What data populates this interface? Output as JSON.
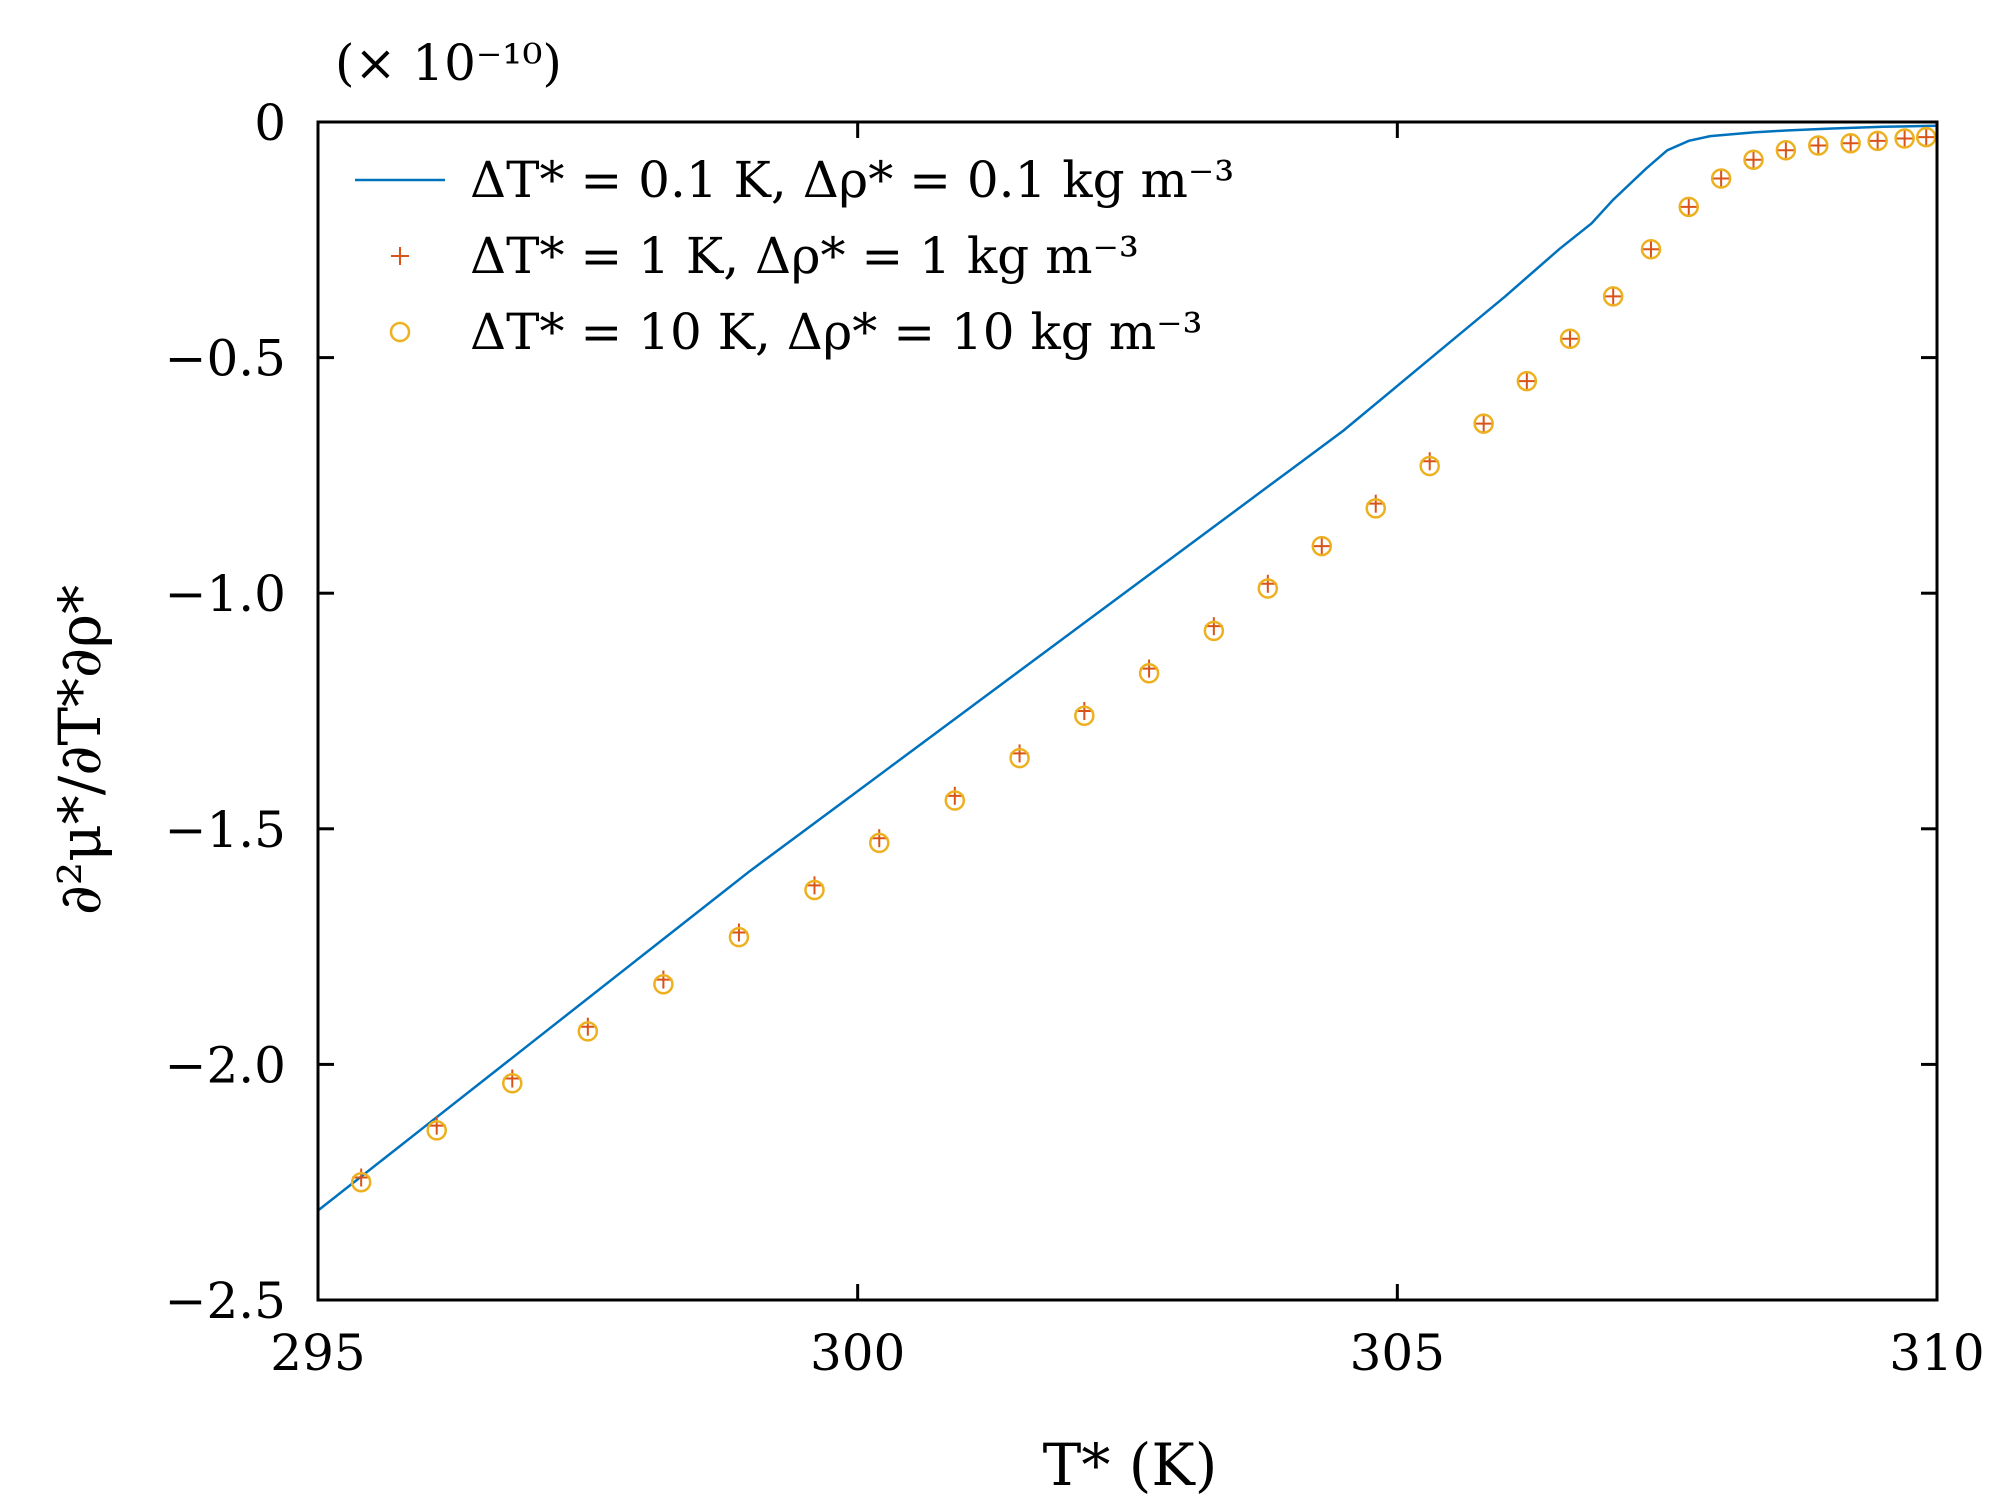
{
  "chart_data": {
    "type": "line",
    "title": "",
    "xlabel": "T* (K)",
    "ylabel": "∂²μ*/∂T*∂ρ*",
    "y_multiplier_label": "(× 10⁻¹⁰)",
    "xlim": [
      295,
      310
    ],
    "ylim": [
      -2.5,
      0
    ],
    "x_ticks": [
      295,
      300,
      305,
      310
    ],
    "x_tick_labels": [
      "295",
      "300",
      "305",
      "310"
    ],
    "y_ticks": [
      0,
      -0.5,
      -1.0,
      -1.5,
      -2.0,
      -2.5
    ],
    "y_tick_labels": [
      "0",
      "−0.5",
      "−1.0",
      "−1.5",
      "−2.0",
      "−2.5"
    ],
    "grid": false,
    "legend_position": "top-left",
    "series": [
      {
        "name": "ΔT* = 0.1 K, Δρ* = 0.1 kg m⁻³",
        "style": "line",
        "color": "#0072BD",
        "x": [
          295.0,
          296.0,
          297.0,
          298.0,
          299.0,
          300.0,
          301.0,
          302.0,
          303.0,
          304.0,
          304.5,
          305.0,
          305.5,
          306.0,
          306.5,
          306.8,
          307.0,
          307.3,
          307.5,
          307.7,
          307.9,
          308.1,
          308.3,
          308.6,
          309.0,
          309.5,
          310.0
        ],
        "y": [
          -2.31,
          -2.13,
          -1.95,
          -1.77,
          -1.59,
          -1.42,
          -1.25,
          -1.08,
          -0.91,
          -0.74,
          -0.655,
          -0.56,
          -0.465,
          -0.37,
          -0.27,
          -0.215,
          -0.165,
          -0.1,
          -0.06,
          -0.04,
          -0.03,
          -0.026,
          -0.022,
          -0.018,
          -0.014,
          -0.01,
          -0.008
        ],
        "y_scaled_note": ""
      },
      {
        "name": "ΔT* = 1 K, Δρ* = 1 kg m⁻³",
        "style": "plus",
        "color": "#D95319",
        "x": [
          295.4,
          296.1,
          296.8,
          297.5,
          298.2,
          298.9,
          299.6,
          300.2,
          300.9,
          301.5,
          302.1,
          302.7,
          303.3,
          303.8,
          304.3,
          304.8,
          305.3,
          305.8,
          306.2,
          306.6,
          307.0,
          307.35,
          307.7,
          308.0,
          308.3,
          308.6,
          308.9,
          309.2,
          309.45,
          309.7,
          309.9
        ],
        "y": [
          -2.24,
          -2.13,
          -2.03,
          -1.92,
          -1.82,
          -1.72,
          -1.62,
          -1.52,
          -1.43,
          -1.34,
          -1.25,
          -1.16,
          -1.07,
          -0.98,
          -0.9,
          -0.81,
          -0.72,
          -0.64,
          -0.55,
          -0.46,
          -0.37,
          -0.27,
          -0.18,
          -0.12,
          -0.08,
          -0.06,
          -0.05,
          -0.045,
          -0.04,
          -0.035,
          -0.032
        ]
      },
      {
        "name": "ΔT* = 10 K, Δρ* = 10 kg m⁻³",
        "style": "circle",
        "color": "#EDB120",
        "x": [
          295.4,
          296.1,
          296.8,
          297.5,
          298.2,
          298.9,
          299.6,
          300.2,
          300.9,
          301.5,
          302.1,
          302.7,
          303.3,
          303.8,
          304.3,
          304.8,
          305.3,
          305.8,
          306.2,
          306.6,
          307.0,
          307.35,
          307.7,
          308.0,
          308.3,
          308.6,
          308.9,
          309.2,
          309.45,
          309.7,
          309.9
        ],
        "y": [
          -2.25,
          -2.14,
          -2.04,
          -1.93,
          -1.83,
          -1.73,
          -1.63,
          -1.53,
          -1.44,
          -1.35,
          -1.26,
          -1.17,
          -1.08,
          -0.99,
          -0.9,
          -0.82,
          -0.73,
          -0.64,
          -0.55,
          -0.46,
          -0.37,
          -0.27,
          -0.18,
          -0.12,
          -0.08,
          -0.06,
          -0.05,
          -0.045,
          -0.04,
          -0.035,
          -0.032
        ]
      }
    ]
  }
}
